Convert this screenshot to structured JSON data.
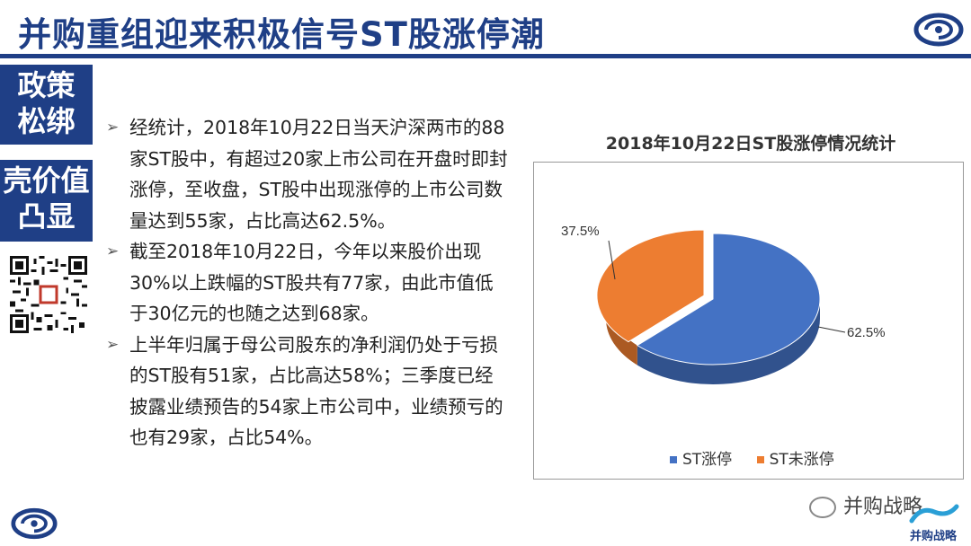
{
  "header": {
    "title": "并购重组迎来积极信号ST股涨停潮"
  },
  "sidebar": {
    "tags": [
      {
        "line1": "政策",
        "line2": "松绑"
      },
      {
        "line1": "壳价值",
        "line2": "凸显"
      }
    ]
  },
  "bullets": [
    "经统计，2018年10月22日当天沪深两市的88家ST股中，有超过20家上市公司在开盘时即封涨停，至收盘，ST股中出现涨停的上市公司数量达到55家，占比高达62.5%。",
    "截至2018年10月22日，今年以来股价出现30%以上跌幅的ST股共有77家，由此市值低于30亿元的也随之达到68家。",
    "上半年归属于母公司股东的净利润仍处于亏损的ST股有51家，占比高达58%；三季度已经披露业绩预告的54家上市公司中，业绩预亏的也有29家，占比54%。"
  ],
  "chart_data": {
    "type": "pie",
    "title": "2018年10月22日ST股涨停情况统计",
    "categories": [
      "ST涨停",
      "ST未涨停"
    ],
    "values": [
      62.5,
      37.5
    ],
    "labels": [
      "62.5%",
      "37.5%"
    ],
    "colors": [
      "#4472c4",
      "#ed7d31"
    ],
    "legend_position": "bottom"
  },
  "watermark": {
    "text": "并购战略"
  },
  "brand": {
    "text": "并购战略"
  },
  "colors": {
    "primary": "#1f3f86",
    "accent_blue": "#4472c4",
    "accent_orange": "#ed7d31"
  }
}
